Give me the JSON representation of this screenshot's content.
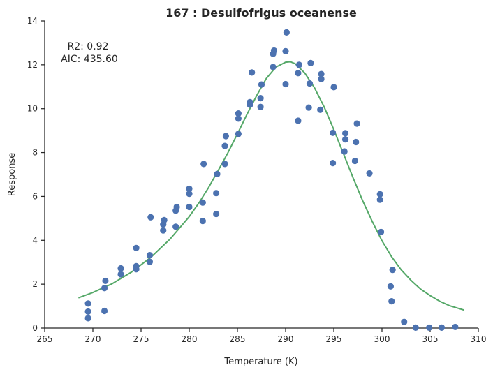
{
  "chart_data": {
    "type": "scatter",
    "title": "167 : Desulfofrigus oceanense",
    "xlabel": "Temperature (K)",
    "ylabel": "Response",
    "xlim": [
      265,
      310
    ],
    "ylim": [
      0,
      14
    ],
    "xticks": [
      265,
      270,
      275,
      280,
      285,
      290,
      295,
      300,
      305,
      310
    ],
    "yticks": [
      0,
      2,
      4,
      6,
      8,
      10,
      12,
      14
    ],
    "grid": false,
    "annotations": [
      "R2: 0.92",
      "AIC: 435.60"
    ],
    "colors": {
      "points": "#4c72b0",
      "fit": "#55a868",
      "axis": "#262626"
    },
    "series": [
      {
        "kind": "points",
        "x": [
          269.5,
          269.5,
          269.5,
          271.2,
          271.2,
          271.3,
          272.9,
          272.9,
          274.5,
          274.5,
          274.5,
          275.9,
          275.9,
          276.0,
          277.3,
          277.3,
          277.4,
          278.6,
          278.6,
          278.7,
          280.0,
          280.0,
          280.0,
          281.4,
          281.4,
          281.5,
          282.8,
          282.8,
          282.9,
          283.7,
          283.7,
          283.8,
          285.1,
          285.1,
          285.1,
          286.3,
          286.3,
          286.5,
          287.4,
          287.4,
          287.5,
          288.7,
          288.7,
          288.8,
          290.0,
          290.0,
          290.1,
          291.3,
          291.3,
          291.4,
          292.4,
          292.5,
          292.6,
          293.6,
          293.7,
          293.7,
          294.9,
          294.9,
          295.0,
          296.1,
          296.2,
          296.2,
          297.2,
          297.3,
          297.4,
          298.7,
          299.8,
          299.8,
          299.9,
          300.9,
          301.0,
          301.1,
          302.3,
          303.5,
          304.9,
          306.2,
          307.6
        ],
        "y": [
          0.45,
          0.75,
          1.12,
          0.78,
          1.82,
          2.15,
          2.45,
          2.72,
          2.68,
          2.82,
          3.65,
          3.02,
          3.32,
          5.05,
          4.45,
          4.72,
          4.92,
          4.62,
          5.35,
          5.52,
          5.52,
          6.12,
          6.35,
          4.88,
          5.72,
          7.48,
          5.2,
          6.15,
          7.02,
          7.48,
          8.3,
          8.75,
          8.85,
          9.55,
          9.78,
          10.18,
          10.3,
          11.65,
          10.08,
          10.48,
          11.1,
          11.9,
          12.5,
          12.65,
          11.12,
          12.62,
          13.48,
          9.45,
          11.62,
          12.0,
          10.05,
          11.15,
          12.08,
          9.95,
          11.35,
          11.58,
          7.52,
          8.9,
          10.98,
          8.05,
          8.6,
          8.88,
          7.62,
          8.48,
          9.32,
          7.05,
          5.85,
          6.1,
          4.38,
          1.9,
          1.22,
          2.65,
          0.28,
          0.02,
          0.02,
          0.02,
          0.05
        ]
      },
      {
        "kind": "fit",
        "x": [
          268.5,
          270,
          272,
          274,
          276,
          278,
          280,
          281,
          282,
          283,
          284,
          285,
          286,
          287,
          288,
          289,
          290,
          290.5,
          291,
          292,
          293,
          294,
          295,
          296,
          297,
          298,
          299,
          300,
          301,
          302,
          303,
          304,
          305,
          306,
          307,
          308.5
        ],
        "y": [
          1.38,
          1.62,
          2.02,
          2.55,
          3.22,
          4.05,
          5.08,
          5.7,
          6.4,
          7.18,
          7.98,
          8.85,
          9.75,
          10.6,
          11.38,
          11.9,
          12.12,
          12.14,
          12.05,
          11.62,
          10.95,
          10.08,
          9.05,
          7.95,
          6.85,
          5.8,
          4.85,
          3.98,
          3.25,
          2.65,
          2.18,
          1.78,
          1.48,
          1.22,
          1.02,
          0.82
        ]
      }
    ]
  }
}
